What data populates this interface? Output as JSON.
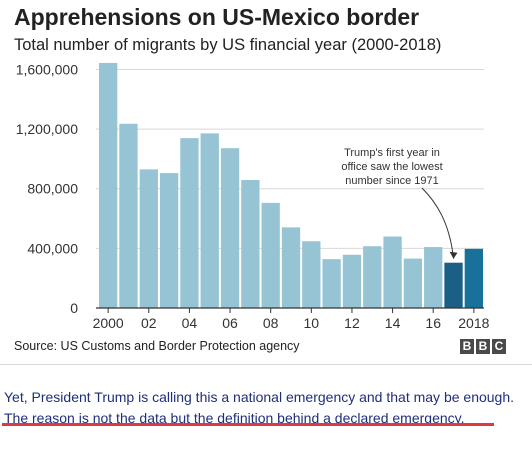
{
  "chart_data": {
    "type": "bar",
    "title": "Apprehensions on US-Mexico border",
    "subtitle": "Total number of migrants by US financial year (2000-2018)",
    "categories": [
      "2000",
      "2001",
      "2002",
      "2003",
      "2004",
      "2005",
      "2006",
      "2007",
      "2008",
      "2009",
      "2010",
      "2011",
      "2012",
      "2013",
      "2014",
      "2015",
      "2016",
      "2017",
      "2018"
    ],
    "values": [
      1643679,
      1235718,
      929809,
      905065,
      1139282,
      1171396,
      1071972,
      858638,
      705005,
      540865,
      447731,
      327577,
      356873,
      414397,
      479371,
      331333,
      408870,
      303916,
      396579
    ],
    "x_tick_labels": [
      "2000",
      "02",
      "04",
      "06",
      "08",
      "10",
      "12",
      "14",
      "16",
      "2018"
    ],
    "y_ticks": [
      0,
      400000,
      800000,
      1200000,
      1600000
    ],
    "y_tick_labels": [
      "0",
      "400,000",
      "800,000",
      "1,200,000",
      "1,600,000"
    ],
    "ylim": [
      0,
      1650000
    ],
    "grid": true,
    "colors": {
      "default_bar": "#97c4d5",
      "highlight_bar_2017": "#1b5f86",
      "highlight_bar_2018": "#17719b"
    },
    "highlighted_categories": [
      "2017",
      "2018"
    ],
    "annotation": {
      "target": "2017",
      "lines": [
        "Trump's first year in",
        "office saw the lowest",
        "number since 1971"
      ]
    }
  },
  "source": "Source: US Customs and Border Protection agency",
  "logo": [
    "B",
    "B",
    "C"
  ],
  "caption": {
    "line1": "Yet, President Trump is calling this a national emergency and that may be enough.",
    "line2": "The reason is not the data but the definition behind a declared emergency."
  }
}
